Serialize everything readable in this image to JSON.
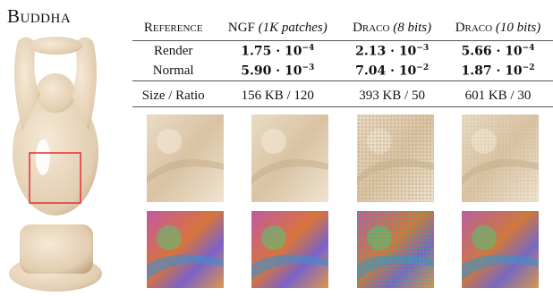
{
  "title": "Buddha",
  "table": {
    "header": [
      "Reference",
      {
        "name": "NGF",
        "note": "(1K patches)"
      },
      {
        "name": "Draco",
        "note": "(8 bits)"
      },
      {
        "name": "Draco",
        "note": "(10 bits)"
      }
    ],
    "rows": [
      {
        "label": "Render",
        "cells": [
          {
            "base": "1.75 · 10",
            "exp": "−4"
          },
          {
            "base": "2.13 · 10",
            "exp": "−3"
          },
          {
            "base": "5.66 · 10",
            "exp": "−4"
          }
        ]
      },
      {
        "label": "Normal",
        "cells": [
          {
            "base": "5.90 · 10",
            "exp": "−3"
          },
          {
            "base": "7.04 · 10",
            "exp": "−2"
          },
          {
            "base": "1.87 · 10",
            "exp": "−2"
          }
        ]
      }
    ],
    "size_row": {
      "label": "Size / Ratio",
      "cells": [
        "156 KB / 120",
        "393 KB / 50",
        "601 KB / 30"
      ]
    }
  }
}
